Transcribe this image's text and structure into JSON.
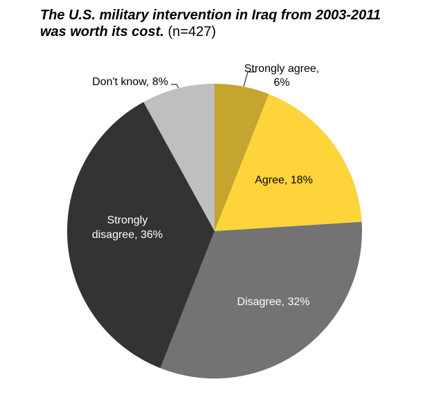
{
  "chart_data": {
    "type": "pie",
    "title": "The U.S. military intervention in Iraq from 2003-2011 was worth its cost.",
    "title_line1": "The U.S. military intervention in Iraq from 2003-2011",
    "title_line2": "was worth its cost.",
    "sample_note": "(n=427)",
    "start_angle": "12 o'clock",
    "direction": "clockwise",
    "slices": [
      {
        "label": "Strongly agree",
        "value": 6,
        "color": "#C4A52F",
        "text_color": "#000000",
        "label_line1": "Strongly agree,",
        "label_line2": "6%",
        "placement": "outside"
      },
      {
        "label": "Agree",
        "value": 18,
        "color": "#FDD53B",
        "text_color": "#000000",
        "label_line1": "Agree, 18%",
        "label_line2": "",
        "placement": "inside"
      },
      {
        "label": "Disagree",
        "value": 32,
        "color": "#737373",
        "text_color": "#FFFFFF",
        "label_line1": "Disagree, 32%",
        "label_line2": "",
        "placement": "inside"
      },
      {
        "label": "Strongly disagree",
        "value": 36,
        "color": "#333333",
        "text_color": "#FFFFFF",
        "label_line1": "Strongly",
        "label_line2": "disagree, 36%",
        "placement": "inside"
      },
      {
        "label": "Don't know",
        "value": 8,
        "color": "#BFBFBF",
        "text_color": "#000000",
        "label_line1": "Don't know, 8%",
        "label_line2": "",
        "placement": "outside"
      }
    ]
  }
}
